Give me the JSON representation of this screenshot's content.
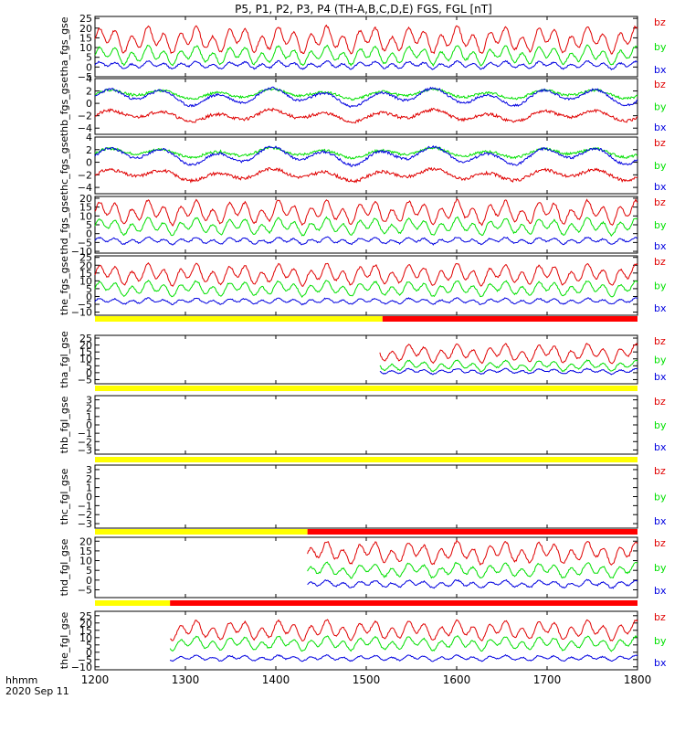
{
  "title": "P5, P1, P2, P3, P4 (TH-A,B,C,D,E) FGS, FGL [nT]",
  "footer": {
    "time_label": "hhmm",
    "date_label": "2020 Sep 11"
  },
  "colors": {
    "bz": "#e00000",
    "by": "#00e000",
    "bx": "#0000e0",
    "bar_yellow": "#ffff00",
    "bar_red": "#ff0000"
  },
  "chart_data": {
    "type": "line",
    "xlabel": "",
    "xlim": [
      1200,
      1800
    ],
    "x_ticks": [
      1200,
      1300,
      1400,
      1500,
      1600,
      1700,
      1800
    ],
    "x_tick_labels": [
      "1200",
      "1300",
      "1400",
      "1500",
      "1600",
      "1700",
      "1800"
    ],
    "legend": [
      "bz",
      "by",
      "bx"
    ],
    "legend_placement": "right",
    "panels": [
      {
        "ylabel": "tha_fgs_gse",
        "ylim": [
          -5,
          26
        ],
        "y_ticks": [
          -5,
          0,
          5,
          10,
          15,
          20,
          25
        ],
        "y_tick_labels": [
          "−5",
          "0",
          "5",
          "10",
          "15",
          "20",
          "25"
        ],
        "data_start": 1200,
        "series": [
          {
            "name": "bz",
            "base": 14,
            "amp": 7,
            "noise": 0.6,
            "seed": 11,
            "period": 18
          },
          {
            "name": "by",
            "base": 6,
            "amp": 5,
            "noise": 0.5,
            "seed": 12,
            "period": 18
          },
          {
            "name": "bx",
            "base": 1,
            "amp": 2,
            "noise": 0.4,
            "seed": 13,
            "period": 18
          }
        ]
      },
      {
        "ylabel": "thb_fgs_gse",
        "ylim": [
          -5,
          4
        ],
        "y_ticks": [
          -4,
          -2,
          0,
          2,
          4
        ],
        "y_tick_labels": [
          "−4",
          "−2",
          "0",
          "2",
          "4"
        ],
        "data_start": 1200,
        "series": [
          {
            "name": "bz",
            "base": -2,
            "amp": 1,
            "noise": 0.25,
            "seed": 21,
            "period": 60
          },
          {
            "name": "by",
            "base": 1.5,
            "amp": 0.8,
            "noise": 0.2,
            "seed": 22,
            "period": 60
          },
          {
            "name": "bx",
            "base": 1.0,
            "amp": 1.5,
            "noise": 0.2,
            "seed": 23,
            "period": 60
          }
        ]
      },
      {
        "ylabel": "thc_fgs_gse",
        "ylim": [
          -5,
          4
        ],
        "y_ticks": [
          -4,
          -2,
          0,
          2,
          4
        ],
        "y_tick_labels": [
          "−4",
          "−2",
          "0",
          "2",
          "4"
        ],
        "data_start": 1200,
        "series": [
          {
            "name": "bz",
            "base": -2,
            "amp": 1,
            "noise": 0.25,
            "seed": 31,
            "period": 60
          },
          {
            "name": "by",
            "base": 1.5,
            "amp": 0.8,
            "noise": 0.2,
            "seed": 32,
            "period": 60
          },
          {
            "name": "bx",
            "base": 1.0,
            "amp": 1.5,
            "noise": 0.2,
            "seed": 33,
            "period": 60
          }
        ]
      },
      {
        "ylabel": "thd_fgs_gse",
        "ylim": [
          -11,
          21
        ],
        "y_ticks": [
          -10,
          -5,
          0,
          5,
          10,
          15,
          20
        ],
        "y_tick_labels": [
          "−10",
          "−5",
          "0",
          "5",
          "10",
          "15",
          "20"
        ],
        "data_start": 1200,
        "series": [
          {
            "name": "bz",
            "base": 12,
            "amp": 7,
            "noise": 0.6,
            "seed": 41,
            "period": 18
          },
          {
            "name": "by",
            "base": 4,
            "amp": 5,
            "noise": 0.5,
            "seed": 42,
            "period": 18
          },
          {
            "name": "bx",
            "base": -4,
            "amp": 2,
            "noise": 0.4,
            "seed": 43,
            "period": 18
          }
        ]
      },
      {
        "ylabel": "the_fgs_gse",
        "ylim": [
          -12,
          26
        ],
        "y_ticks": [
          -10,
          -5,
          0,
          5,
          10,
          15,
          20,
          25
        ],
        "y_tick_labels": [
          "−10",
          "−5",
          "0",
          "5",
          "10",
          "15",
          "20",
          "25"
        ],
        "data_start": 1200,
        "series": [
          {
            "name": "bz",
            "base": 14,
            "amp": 7,
            "noise": 0.6,
            "seed": 51,
            "period": 18
          },
          {
            "name": "by",
            "base": 5,
            "amp": 5,
            "noise": 0.5,
            "seed": 52,
            "period": 18
          },
          {
            "name": "bx",
            "base": -3,
            "amp": 2,
            "noise": 0.4,
            "seed": 53,
            "period": 18
          }
        ]
      },
      {
        "ylabel": "tha_fgl_gse",
        "ylim": [
          -8,
          27
        ],
        "y_ticks": [
          -5,
          0,
          5,
          10,
          15,
          20,
          25
        ],
        "y_tick_labels": [
          "−5",
          "0",
          "5",
          "10",
          "15",
          "20",
          "25"
        ],
        "data_start": 1515,
        "bar": {
          "yellow_to": 1518,
          "red_from": 1518
        },
        "series": [
          {
            "name": "bz",
            "base": 14,
            "amp": 7,
            "noise": 0.6,
            "seed": 61,
            "period": 18
          },
          {
            "name": "by",
            "base": 5,
            "amp": 4,
            "noise": 0.5,
            "seed": 62,
            "period": 18
          },
          {
            "name": "bx",
            "base": 1,
            "amp": 2,
            "noise": 0.4,
            "seed": 63,
            "period": 18
          }
        ]
      },
      {
        "ylabel": "thb_fgl_gse",
        "ylim": [
          -3.5,
          3.5
        ],
        "y_ticks": [
          -3,
          -2,
          -1,
          0,
          1,
          2,
          3
        ],
        "y_tick_labels": [
          "−3",
          "−2",
          "−1",
          "0",
          "1",
          "2",
          "3"
        ],
        "data_start": null,
        "bar": {
          "yellow_to": 1800,
          "red_from": null
        },
        "series": []
      },
      {
        "ylabel": "thc_fgl_gse",
        "ylim": [
          -3.5,
          3.5
        ],
        "y_ticks": [
          -3,
          -2,
          -1,
          0,
          1,
          2,
          3
        ],
        "y_tick_labels": [
          "−3",
          "−2",
          "−1",
          "0",
          "1",
          "2",
          "3"
        ],
        "data_start": null,
        "bar": {
          "yellow_to": 1800,
          "red_from": null
        },
        "series": []
      },
      {
        "ylabel": "thd_fgl_gse",
        "ylim": [
          -9,
          22
        ],
        "y_ticks": [
          -5,
          0,
          5,
          10,
          15,
          20
        ],
        "y_tick_labels": [
          "−5",
          "0",
          "5",
          "10",
          "15",
          "20"
        ],
        "data_start": 1435,
        "bar": {
          "yellow_to": 1435,
          "red_from": 1435
        },
        "series": [
          {
            "name": "bz",
            "base": 14,
            "amp": 6,
            "noise": 0.6,
            "seed": 91,
            "period": 18
          },
          {
            "name": "by",
            "base": 5,
            "amp": 4,
            "noise": 0.5,
            "seed": 92,
            "period": 18
          },
          {
            "name": "bx",
            "base": -2,
            "amp": 2,
            "noise": 0.4,
            "seed": 93,
            "period": 18
          }
        ]
      },
      {
        "ylabel": "the_fgl_gse",
        "ylim": [
          -12,
          28
        ],
        "y_ticks": [
          -10,
          -5,
          0,
          5,
          10,
          15,
          20,
          25
        ],
        "y_tick_labels": [
          "−10",
          "−5",
          "0",
          "5",
          "10",
          "15",
          "20",
          "25"
        ],
        "data_start": 1283,
        "bar": {
          "yellow_to": 1283,
          "red_from": 1283
        },
        "series": [
          {
            "name": "bz",
            "base": 15,
            "amp": 7,
            "noise": 0.6,
            "seed": 101,
            "period": 18
          },
          {
            "name": "by",
            "base": 6,
            "amp": 5,
            "noise": 0.5,
            "seed": 102,
            "period": 18
          },
          {
            "name": "bx",
            "base": -4,
            "amp": 2,
            "noise": 0.4,
            "seed": 103,
            "period": 18
          }
        ]
      }
    ]
  }
}
